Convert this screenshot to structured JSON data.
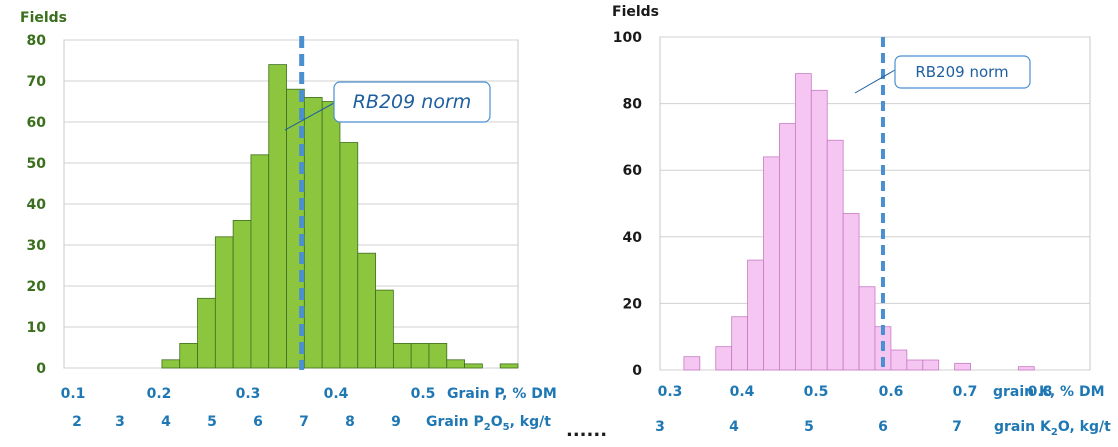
{
  "dots": "......",
  "chart_data": [
    {
      "type": "bar",
      "ylabel": "Fields",
      "ylim": [
        0,
        80
      ],
      "yticks": [
        0,
        10,
        20,
        30,
        40,
        50,
        60,
        70,
        80
      ],
      "x_axis_primary": {
        "label": "Grain P, % DM",
        "ticks": [
          "0.1",
          "0.2",
          "0.3",
          "0.4",
          "0.5"
        ]
      },
      "x_axis_secondary": {
        "label_prefix": "Grain P",
        "label_sub1": "2",
        "label_mid": "O",
        "label_sub2": "5",
        "label_suffix": ", kg/t",
        "ticks": [
          "2",
          "3",
          "4",
          "5",
          "6",
          "7",
          "8",
          "9"
        ]
      },
      "bins_start": 0.1,
      "bin_width": 0.02,
      "values": [
        0,
        0,
        0,
        0,
        2,
        6,
        17,
        32,
        36,
        52,
        74,
        68,
        66,
        65,
        55,
        28,
        19,
        6,
        6,
        6,
        2,
        1,
        0,
        1,
        0
      ],
      "bar_color": "#8cc63f",
      "norm_line": {
        "x": 0.337,
        "label": "RB209 norm",
        "color": "#4a8fd0"
      }
    },
    {
      "type": "bar",
      "ylabel": "Fields",
      "ylim": [
        0,
        100
      ],
      "yticks": [
        0,
        20,
        40,
        60,
        80,
        100
      ],
      "x_axis_primary": {
        "label": "grain K, % DM",
        "ticks": [
          "0.3",
          "0.4",
          "0.5",
          "0.6",
          "0.7",
          "0.8"
        ]
      },
      "x_axis_secondary": {
        "label_prefix": "grain K",
        "label_sub1": "2",
        "label_mid": "O",
        "label_sub2": "",
        "label_suffix": ", kg/t",
        "ticks": [
          "3",
          "4",
          "5",
          "6",
          "7"
        ]
      },
      "bins_start": 0.3,
      "bin_width": 0.02,
      "values": [
        4,
        0,
        7,
        16,
        33,
        64,
        74,
        89,
        84,
        69,
        47,
        25,
        13,
        6,
        3,
        3,
        0,
        2,
        0,
        0,
        0,
        1
      ],
      "bar_color": "#f5c6f2",
      "norm_line": {
        "x": 0.55,
        "label": "RB209 norm",
        "color": "#4a8fd0"
      }
    }
  ]
}
